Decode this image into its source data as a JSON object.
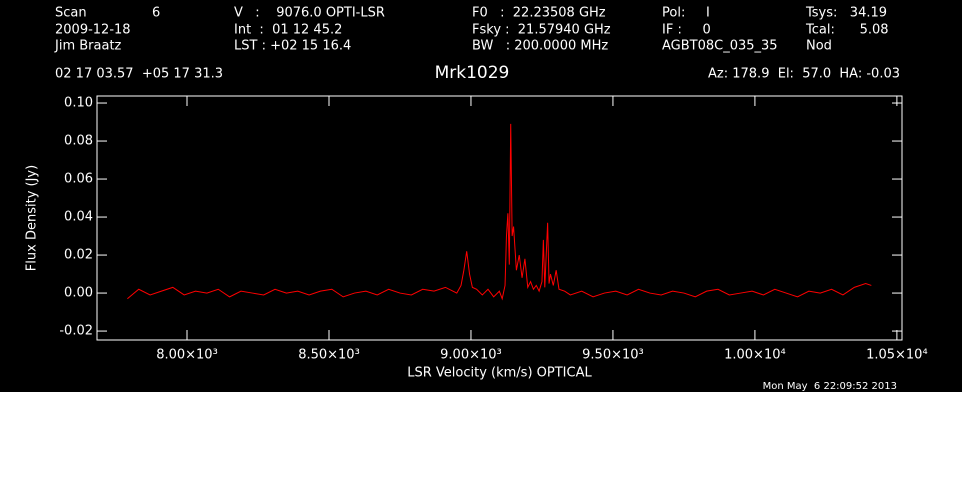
{
  "header": {
    "rows": [
      [
        "Scan",
        "6",
        "V   :    9076.0 OPTI-LSR",
        "F0   :  22.23508 GHz",
        "Pol:     I",
        "Tsys:   34.19"
      ],
      [
        "2009-12-18",
        "Int  :  01 12 45.2",
        "Fsky :  21.57940 GHz",
        "IF :     0",
        "Tcal:      5.08"
      ],
      [
        "Jim Braatz",
        "LST : +02 15 16.4",
        "BW   : 200.0000 MHz",
        "AGBT08C_035_35",
        "Nod"
      ]
    ],
    "coords": "02 17 03.57  +05 17 31.3",
    "pointing": "Az: 178.9  El:  57.0  HA: -0.03",
    "footer": "Mon May  6 22:09:52 2013"
  },
  "chart_data": {
    "type": "line",
    "title": "Mrk1029",
    "x_label": "LSR Velocity (km/s) OPTICAL",
    "y_label": "Flux Density (Jy)",
    "color": "#ff0000",
    "x": [
      7790,
      7830,
      7870,
      7910,
      7950,
      7990,
      8030,
      8070,
      8110,
      8150,
      8190,
      8230,
      8270,
      8310,
      8350,
      8390,
      8430,
      8470,
      8510,
      8550,
      8590,
      8630,
      8670,
      8710,
      8750,
      8790,
      8830,
      8870,
      8910,
      8950,
      8965,
      8975,
      8985,
      8995,
      9005,
      9020,
      9040,
      9060,
      9080,
      9100,
      9110,
      9120,
      9125,
      9130,
      9135,
      9140,
      9145,
      9150,
      9160,
      9170,
      9180,
      9190,
      9200,
      9210,
      9220,
      9230,
      9240,
      9250,
      9255,
      9260,
      9270,
      9275,
      9280,
      9290,
      9300,
      9310,
      9330,
      9350,
      9390,
      9430,
      9470,
      9510,
      9550,
      9590,
      9630,
      9670,
      9710,
      9750,
      9790,
      9830,
      9870,
      9910,
      9950,
      9990,
      10030,
      10070,
      10110,
      10150,
      10190,
      10230,
      10270,
      10310,
      10350,
      10390,
      10410
    ],
    "values": [
      -0.003,
      0.002,
      -0.001,
      0.001,
      0.003,
      -0.001,
      0.001,
      0.0,
      0.002,
      -0.002,
      0.001,
      0.0,
      -0.001,
      0.002,
      0.0,
      0.001,
      -0.001,
      0.001,
      0.002,
      -0.002,
      0.0,
      0.001,
      -0.001,
      0.002,
      0.0,
      -0.001,
      0.002,
      0.001,
      0.003,
      0.0,
      0.004,
      0.012,
      0.022,
      0.01,
      0.003,
      0.002,
      -0.001,
      0.002,
      -0.002,
      0.001,
      -0.003,
      0.004,
      0.03,
      0.042,
      0.015,
      0.089,
      0.03,
      0.035,
      0.012,
      0.02,
      0.008,
      0.018,
      0.003,
      0.006,
      0.002,
      0.004,
      0.001,
      0.006,
      0.028,
      0.003,
      0.037,
      0.005,
      0.01,
      0.004,
      0.012,
      0.002,
      0.001,
      -0.001,
      0.001,
      -0.002,
      0.0,
      0.001,
      -0.001,
      0.002,
      0.0,
      -0.001,
      0.001,
      0.0,
      -0.002,
      0.001,
      0.002,
      -0.001,
      0.0,
      0.001,
      -0.001,
      0.002,
      0.0,
      -0.002,
      0.001,
      0.0,
      0.002,
      -0.001,
      0.003,
      0.005,
      0.004
    ],
    "xlim": [
      7683,
      10518
    ],
    "ylim": [
      -0.0247,
      0.1037
    ],
    "xticks": [
      {
        "value": 8000,
        "label": "8.00×10³"
      },
      {
        "value": 8500,
        "label": "8.50×10³"
      },
      {
        "value": 9000,
        "label": "9.00×10³"
      },
      {
        "value": 9500,
        "label": "9.50×10³"
      },
      {
        "value": 10000,
        "label": "1.00×10⁴"
      },
      {
        "value": 10500,
        "label": "1.05×10⁴"
      }
    ],
    "yticks": [
      {
        "value": -0.02,
        "label": "-0.02"
      },
      {
        "value": 0,
        "label": "0.00"
      },
      {
        "value": 0.02,
        "label": "0.02"
      },
      {
        "value": 0.04,
        "label": "0.04"
      },
      {
        "value": 0.06,
        "label": "0.06"
      },
      {
        "value": 0.08,
        "label": "0.08"
      },
      {
        "value": 0.1,
        "label": "0.10"
      }
    ]
  }
}
